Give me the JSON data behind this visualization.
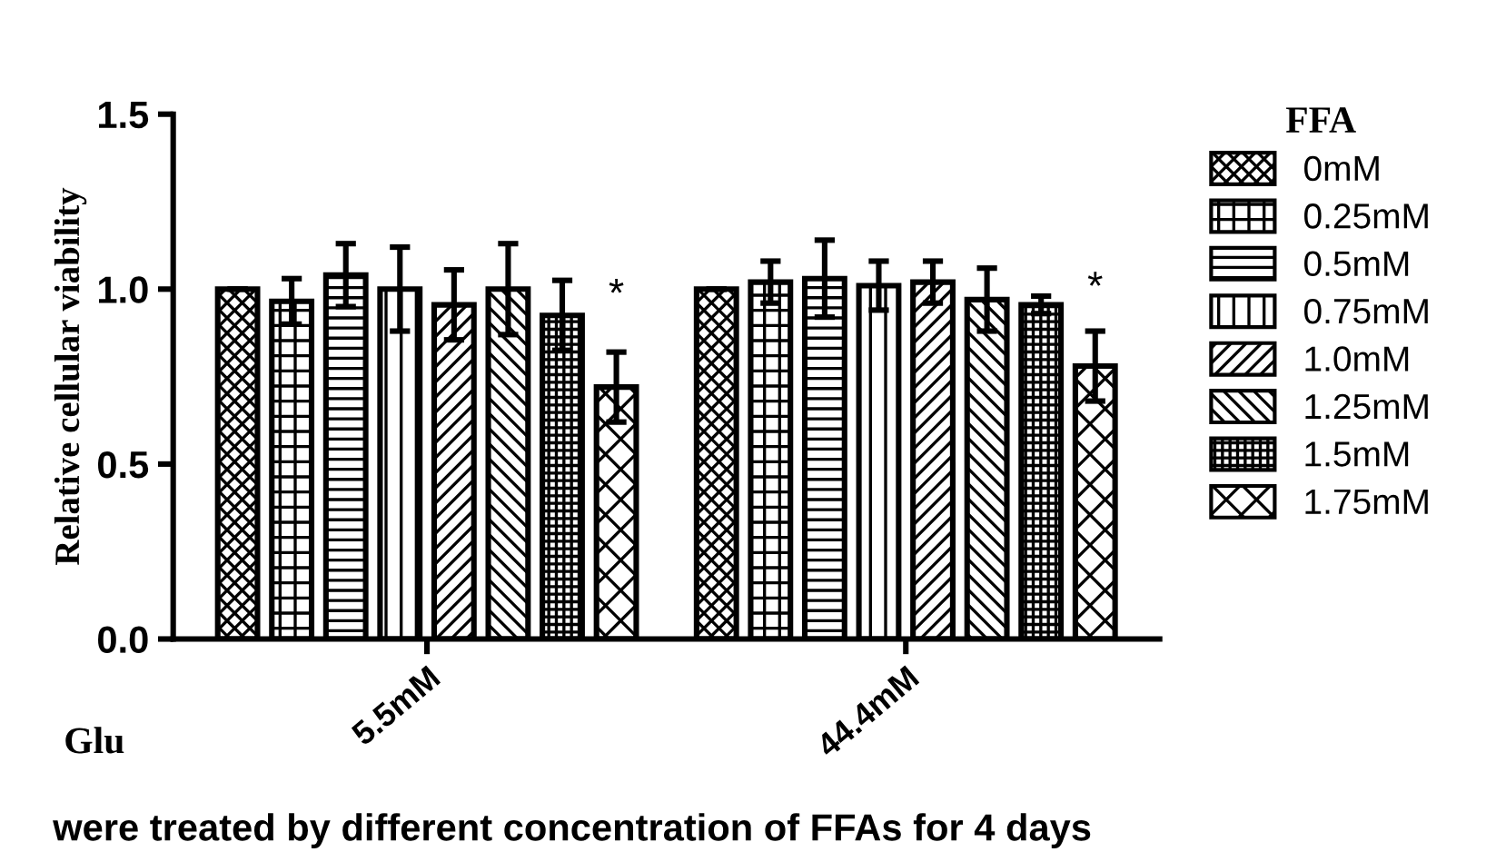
{
  "chart_data": {
    "type": "bar",
    "categories": [
      "5.5mM",
      "44.4mM"
    ],
    "xlabel": "Glu",
    "ylabel": "Relative cellular viability",
    "legend_title": "FFA",
    "legend": "right",
    "grid": false,
    "ylim": [
      0,
      1.5
    ],
    "yticks": [
      {
        "value": 0,
        "label": "0.0"
      },
      {
        "value": 0.5,
        "label": "0.5"
      },
      {
        "value": 1,
        "label": "1.0"
      },
      {
        "value": 1.5,
        "label": "1.5"
      }
    ],
    "series": [
      {
        "name": "0mM",
        "color": "#000000",
        "values": [
          1.0,
          1.0
        ],
        "errors": [
          0,
          0
        ]
      },
      {
        "name": "0.25mM",
        "color": "#000000",
        "values": [
          0.965,
          1.02
        ],
        "errors": [
          0.065,
          0.06
        ]
      },
      {
        "name": "0.5mM",
        "color": "#000000",
        "values": [
          1.04,
          1.03
        ],
        "errors": [
          0.09,
          0.11
        ]
      },
      {
        "name": "0.75mM",
        "color": "#000000",
        "values": [
          1.0,
          1.01
        ],
        "errors": [
          0.12,
          0.07
        ]
      },
      {
        "name": "1.0mM",
        "color": "#000000",
        "values": [
          0.955,
          1.02
        ],
        "errors": [
          0.1,
          0.06
        ]
      },
      {
        "name": "1.25mM",
        "color": "#000000",
        "values": [
          1.0,
          0.97
        ],
        "errors": [
          0.13,
          0.09
        ]
      },
      {
        "name": "1.5mM",
        "color": "#000000",
        "values": [
          0.925,
          0.955
        ],
        "errors": [
          0.1,
          0.025
        ]
      },
      {
        "name": "1.75mM",
        "color": "#000000",
        "values": [
          0.72,
          0.78
        ],
        "errors": [
          0.1,
          0.1
        ]
      }
    ],
    "annotations": [
      "*",
      "*",
      "were treated by different concentration of FFAs for 4 days"
    ]
  }
}
